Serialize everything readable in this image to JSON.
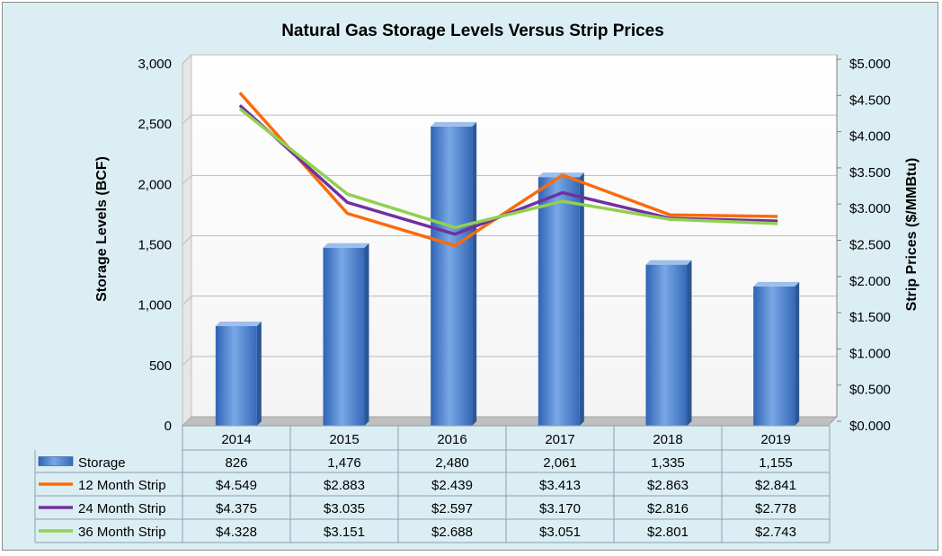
{
  "chart_data": {
    "type": "bar",
    "title": "Natural Gas Storage Levels Versus Strip Prices",
    "ylabel_left": "Storage Levels (BCF)",
    "ylabel_right": "Strip Prices ($/MMBtu)",
    "categories": [
      "2014",
      "2015",
      "2016",
      "2017",
      "2018",
      "2019"
    ],
    "ylim_left": [
      0,
      3000
    ],
    "ylim_right": [
      0,
      5
    ],
    "yticks_left": [
      "0",
      "500",
      "1,000",
      "1,500",
      "2,000",
      "2,500",
      "3,000"
    ],
    "yticks_right": [
      "$0.000",
      "$0.500",
      "$1.000",
      "$1.500",
      "$2.000",
      "$2.500",
      "$3.000",
      "$3.500",
      "$4.000",
      "$4.500",
      "$5.000"
    ],
    "grid": true,
    "legend_placement": "data table below chart",
    "bar_series": {
      "name": "Storage",
      "color": "#4f86d3",
      "values": [
        826,
        1476,
        2480,
        2061,
        1335,
        1155
      ],
      "labels": [
        "826",
        "1,476",
        "2,480",
        "2,061",
        "1,335",
        "1,155"
      ]
    },
    "line_series": [
      {
        "name": "12 Month Strip",
        "color": "#f96b0c",
        "values": [
          4.549,
          2.883,
          2.439,
          3.413,
          2.863,
          2.841
        ],
        "labels": [
          "$4.549",
          "$2.883",
          "$2.439",
          "$3.413",
          "$2.863",
          "$2.841"
        ]
      },
      {
        "name": "24 Month Strip",
        "color": "#7030a0",
        "values": [
          4.375,
          3.035,
          2.597,
          3.17,
          2.816,
          2.778
        ],
        "labels": [
          "$4.375",
          "$3.035",
          "$2.597",
          "$3.170",
          "$2.816",
          "$2.778"
        ]
      },
      {
        "name": "36 Month Strip",
        "color": "#92d050",
        "values": [
          4.328,
          3.151,
          2.688,
          3.051,
          2.801,
          2.743
        ],
        "labels": [
          "$4.328",
          "$3.151",
          "$2.688",
          "$3.051",
          "$2.801",
          "$2.743"
        ]
      }
    ]
  }
}
